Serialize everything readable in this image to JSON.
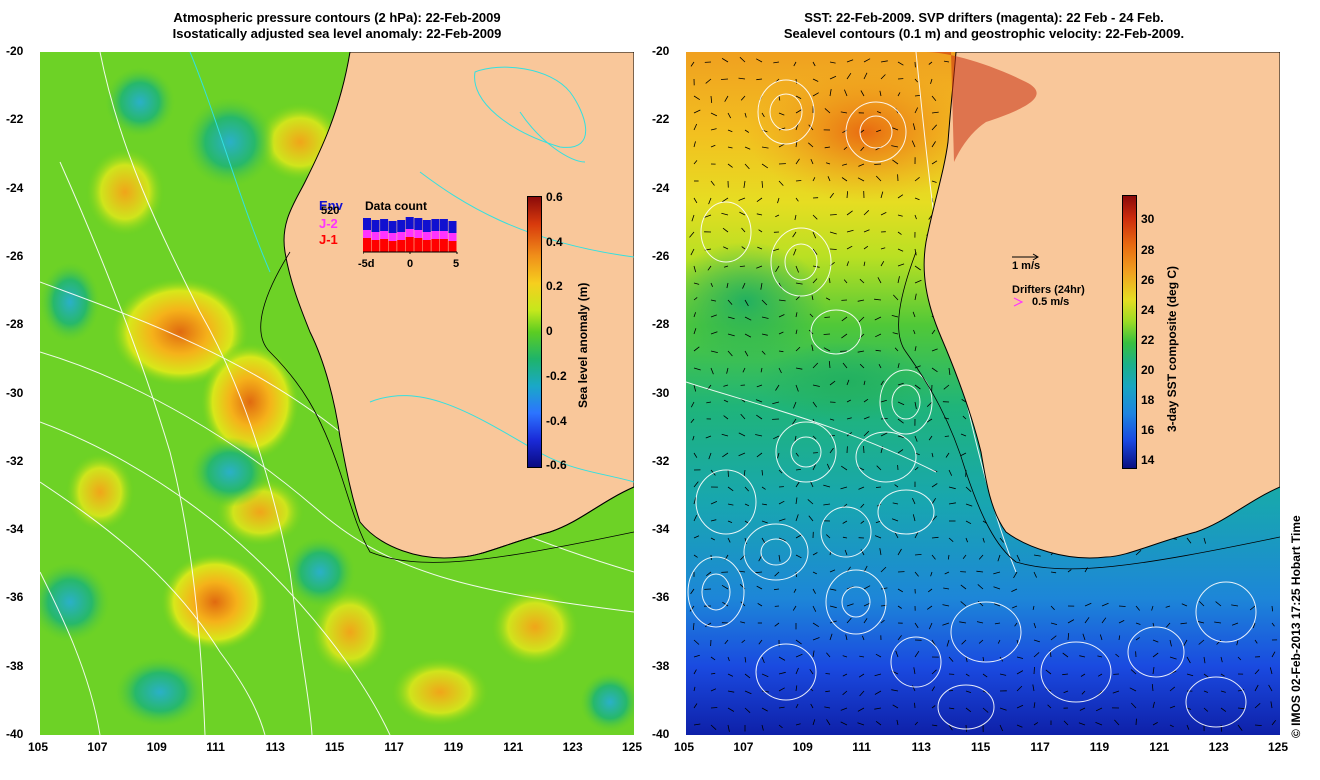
{
  "left_panel": {
    "title_line1": "Atmospheric pressure contours (2 hPa): 22-Feb-2009",
    "title_line2": "Isostatically adjusted sea level anomaly: 22-Feb-2009",
    "colorbar_title": "Sea level anomaly (m)",
    "colorbar_ticks": [
      "0.6",
      "0.4",
      "0.2",
      "0",
      "-0.2",
      "-0.4",
      "-0.6"
    ],
    "data_count": {
      "title": "Data count",
      "max_label": "520",
      "series": [
        "Env",
        "J-2",
        "J-1"
      ],
      "series_colors": [
        "#1010d0",
        "#ff33ff",
        "#ff0000"
      ],
      "x_ticks": [
        "-5d",
        "0",
        "5"
      ]
    }
  },
  "right_panel": {
    "title_line1": "SST: 22-Feb-2009. SVP drifters (magenta): 22 Feb - 24 Feb.",
    "title_line2": "Sealevel contours (0.1 m) and geostrophic velocity: 22-Feb-2009.",
    "colorbar_title": "3-day SST composite (deg C)",
    "colorbar_ticks": [
      "30",
      "28",
      "26",
      "24",
      "22",
      "20",
      "18",
      "16",
      "14"
    ],
    "velocity_legend": "1 m/s",
    "drifter_legend_title": "Drifters (24hr)",
    "drifter_legend_value": "0.5 m/s"
  },
  "axes": {
    "y_ticks": [
      "-20",
      "-22",
      "-24",
      "-26",
      "-28",
      "-30",
      "-32",
      "-34",
      "-36",
      "-38",
      "-40"
    ],
    "x_ticks": [
      "105",
      "107",
      "109",
      "111",
      "113",
      "115",
      "117",
      "119",
      "121",
      "123",
      "125"
    ]
  },
  "credit": "© IMOS 02-Feb-2013 17:25 Hobart Time"
}
